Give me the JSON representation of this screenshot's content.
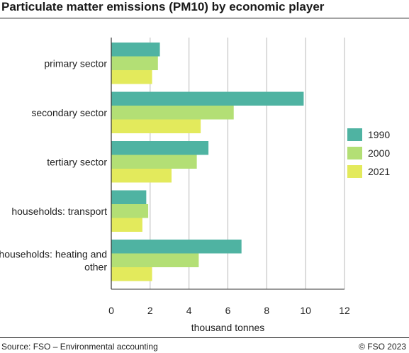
{
  "title": "Particulate matter emissions (PM10) by economic player",
  "source": "Source: FSO – Environmental accounting",
  "copyright": "© FSO 2023",
  "chart_data": {
    "type": "bar",
    "orientation": "horizontal",
    "categories": [
      [
        "primary sector"
      ],
      [
        "secondary sector"
      ],
      [
        "tertiary sector"
      ],
      [
        "households: transport"
      ],
      [
        "households: heating and",
        "other"
      ]
    ],
    "series": [
      {
        "name": "1990",
        "color": "#4fb3a2",
        "values": [
          2.5,
          9.9,
          5.0,
          1.8,
          6.7
        ]
      },
      {
        "name": "2000",
        "color": "#b3df75",
        "values": [
          2.4,
          6.3,
          4.4,
          1.9,
          4.5
        ]
      },
      {
        "name": "2021",
        "color": "#e3ea5c",
        "values": [
          2.1,
          4.6,
          3.1,
          1.6,
          2.1
        ]
      }
    ],
    "xlabel": "thousand tonnes",
    "xlim": [
      0,
      12
    ],
    "xticks": [
      0,
      2,
      4,
      6,
      8,
      10,
      12
    ],
    "grid": true,
    "legend_position": "right"
  }
}
